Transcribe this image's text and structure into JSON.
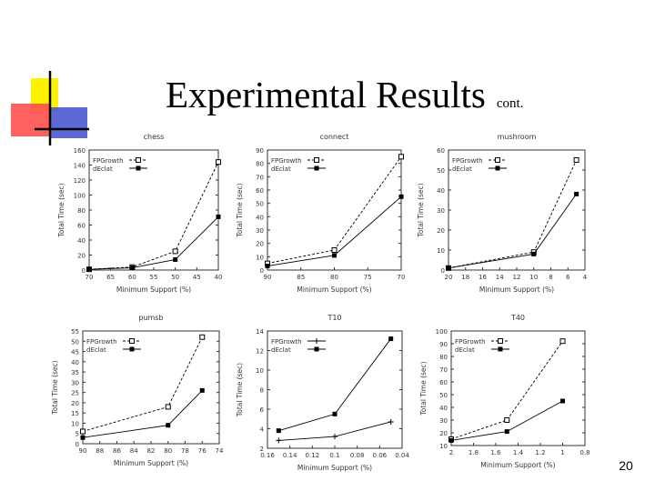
{
  "slide": {
    "title": "Experimental Results",
    "title_suffix": "cont.",
    "page_number": "20"
  },
  "logo": {
    "colors": {
      "yellow": "#fff200",
      "red": "#ff4f4f",
      "blue": "#3f4fd0",
      "line": "#000000"
    }
  },
  "style": {
    "axis_color": "#333333",
    "grid_color": "#999999",
    "line_color": "#000000"
  },
  "chart_data": [
    {
      "type": "line",
      "title": "chess",
      "xlabel": "Minimum Support (%)",
      "ylabel": "Total Time (sec)",
      "xlim": [
        70,
        40
      ],
      "ylim": [
        0,
        160
      ],
      "xticks": [
        "70",
        "65",
        "60",
        "55",
        "50",
        "45",
        "40"
      ],
      "yticks": [
        "0",
        "20",
        "40",
        "60",
        "80",
        "100",
        "120",
        "140",
        "160"
      ],
      "legend": "top-left",
      "series": [
        {
          "name": "FPGrowth",
          "marker": "open-square",
          "dashed": true,
          "x": [
            70,
            60,
            50,
            40
          ],
          "y": [
            1,
            4,
            25,
            144
          ]
        },
        {
          "name": "dEclat",
          "marker": "filled-square",
          "dashed": false,
          "x": [
            70,
            60,
            50,
            40
          ],
          "y": [
            1,
            3,
            14,
            71
          ]
        }
      ]
    },
    {
      "type": "line",
      "title": "connect",
      "xlabel": "Minimum Support (%)",
      "ylabel": "Total Time (sec)",
      "xlim": [
        90,
        70
      ],
      "ylim": [
        0,
        90
      ],
      "xticks": [
        "90",
        "85",
        "80",
        "75",
        "70"
      ],
      "yticks": [
        "0",
        "10",
        "20",
        "30",
        "40",
        "50",
        "60",
        "70",
        "80",
        "90"
      ],
      "legend": "top-left",
      "series": [
        {
          "name": "FPGrowth",
          "marker": "open-square",
          "dashed": true,
          "x": [
            90,
            80,
            70
          ],
          "y": [
            5,
            15,
            85
          ]
        },
        {
          "name": "dEclat",
          "marker": "filled-square",
          "dashed": false,
          "x": [
            90,
            80,
            70
          ],
          "y": [
            3,
            11,
            55
          ]
        }
      ]
    },
    {
      "type": "line",
      "title": "mushroom",
      "xlabel": "Minimum Support (%)",
      "ylabel": "Total Time (sec)",
      "xlim": [
        20,
        4
      ],
      "ylim": [
        0,
        60
      ],
      "xticks": [
        "20",
        "18",
        "16",
        "14",
        "12",
        "10",
        "8",
        "6",
        "4"
      ],
      "yticks": [
        "0",
        "10",
        "20",
        "30",
        "40",
        "50",
        "60"
      ],
      "legend": "top-left",
      "series": [
        {
          "name": "FPGrowth",
          "marker": "open-square",
          "dashed": true,
          "x": [
            20,
            10,
            5
          ],
          "y": [
            1,
            9,
            55
          ]
        },
        {
          "name": "dEclat",
          "marker": "filled-square",
          "dashed": false,
          "x": [
            20,
            10,
            5
          ],
          "y": [
            1,
            8,
            38
          ]
        }
      ]
    },
    {
      "type": "line",
      "title": "pumsb",
      "xlabel": "Minimum Support (%)",
      "ylabel": "Total Time (sec)",
      "xlim": [
        90,
        74
      ],
      "ylim": [
        0,
        55
      ],
      "xticks": [
        "90",
        "88",
        "86",
        "84",
        "82",
        "80",
        "78",
        "76",
        "74"
      ],
      "yticks": [
        "0",
        "5",
        "10",
        "15",
        "20",
        "25",
        "30",
        "35",
        "40",
        "45",
        "50",
        "55"
      ],
      "legend": "top-left",
      "series": [
        {
          "name": "FPGrowth",
          "marker": "open-square",
          "dashed": true,
          "x": [
            90,
            80,
            76
          ],
          "y": [
            6,
            18,
            52
          ]
        },
        {
          "name": "dEclat",
          "marker": "filled-square",
          "dashed": false,
          "x": [
            90,
            80,
            76
          ],
          "y": [
            3,
            9,
            26
          ]
        }
      ]
    },
    {
      "type": "line",
      "title": "T10",
      "xlabel": "Minimum Support (%)",
      "ylabel": "Total Time (sec)",
      "xlim": [
        0.16,
        0.04
      ],
      "ylim": [
        2,
        14
      ],
      "xticks": [
        "0.16",
        "0.14",
        "0.12",
        "0.1",
        "0.08",
        "0.06",
        "0.04"
      ],
      "yticks": [
        "2",
        "4",
        "6",
        "8",
        "10",
        "12",
        "14"
      ],
      "legend": "top-left",
      "series": [
        {
          "name": "FPGrowth",
          "marker": "plus",
          "dashed": false,
          "x": [
            0.15,
            0.1,
            0.05
          ],
          "y": [
            2.8,
            3.2,
            4.7
          ]
        },
        {
          "name": "dEclat",
          "marker": "filled-square",
          "dashed": false,
          "x": [
            0.15,
            0.1,
            0.05
          ],
          "y": [
            3.8,
            5.5,
            13.2
          ]
        }
      ]
    },
    {
      "type": "line",
      "title": "T40",
      "xlabel": "Minimum Support (%)",
      "ylabel": "Total Time (sec)",
      "xlim": [
        2,
        0.8
      ],
      "ylim": [
        10,
        100
      ],
      "xticks": [
        "2",
        "1.8",
        "1.6",
        "1.4",
        "1.2",
        "1",
        "0.8"
      ],
      "yticks": [
        "10",
        "20",
        "30",
        "40",
        "50",
        "60",
        "70",
        "80",
        "90",
        "100"
      ],
      "legend": "top-left",
      "series": [
        {
          "name": "FPGrowth",
          "marker": "open-square",
          "dashed": true,
          "x": [
            2,
            1.5,
            1
          ],
          "y": [
            15,
            30,
            92
          ]
        },
        {
          "name": "dEclat",
          "marker": "filled-square",
          "dashed": false,
          "x": [
            2,
            1.5,
            1
          ],
          "y": [
            14,
            21,
            45
          ]
        }
      ]
    }
  ]
}
